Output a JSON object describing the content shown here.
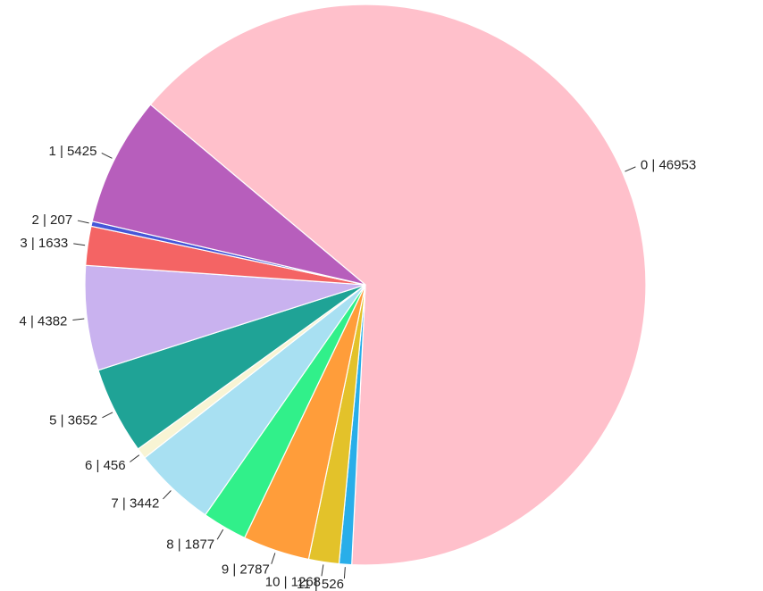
{
  "chart_data": {
    "type": "pie",
    "start_angle_deg": -50,
    "direction": "clockwise",
    "slices": [
      {
        "category": "0",
        "value": 46953,
        "label": "0 | 46953",
        "color": "#FFC0CB"
      },
      {
        "category": "11",
        "value": 526,
        "label": "11 | 526",
        "color": "#29AEE9"
      },
      {
        "category": "10",
        "value": 1268,
        "label": "10 | 1268",
        "color": "#E3C22A"
      },
      {
        "category": "9",
        "value": 2787,
        "label": "9 | 2787",
        "color": "#FF9D3A"
      },
      {
        "category": "8",
        "value": 1877,
        "label": "8 | 1877",
        "color": "#31F08A"
      },
      {
        "category": "7",
        "value": 3442,
        "label": "7 | 3442",
        "color": "#A8E0F2"
      },
      {
        "category": "6",
        "value": 456,
        "label": "6 | 456",
        "color": "#F8F4D4"
      },
      {
        "category": "5",
        "value": 3652,
        "label": "5 | 3652",
        "color": "#1FA396"
      },
      {
        "category": "4",
        "value": 4382,
        "label": "4 | 4382",
        "color": "#C9B2EF"
      },
      {
        "category": "3",
        "value": 1633,
        "label": "3 | 1633",
        "color": "#F46464"
      },
      {
        "category": "2",
        "value": 207,
        "label": "2 | 207",
        "color": "#4657D8"
      },
      {
        "category": "1",
        "value": 5425,
        "label": "1 | 5425",
        "color": "#B75EBC"
      }
    ]
  }
}
